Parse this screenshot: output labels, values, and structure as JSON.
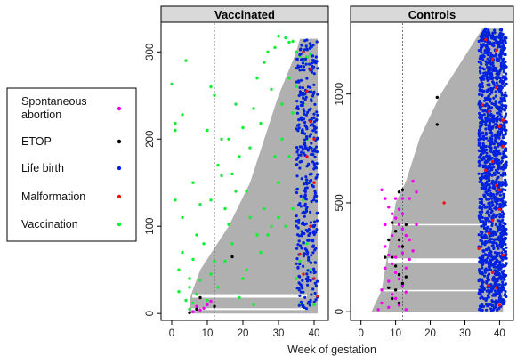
{
  "colors": {
    "spontaneous_abortion": "#ee00ee",
    "etop": "#000000",
    "life_birth": "#0022dd",
    "malformation": "#ee1111",
    "vaccination": "#11ee33",
    "follow_up": "#b0b0b0"
  },
  "legend": {
    "items": [
      {
        "label_lines": [
          "Spontaneous",
          "abortion"
        ],
        "color_key": "spontaneous_abortion"
      },
      {
        "label_lines": [
          "ETOP"
        ],
        "color_key": "etop"
      },
      {
        "label_lines": [
          "Life birth"
        ],
        "color_key": "life_birth"
      },
      {
        "label_lines": [
          "Malformation"
        ],
        "color_key": "malformation"
      },
      {
        "label_lines": [
          "Vaccination"
        ],
        "color_key": "vaccination"
      }
    ]
  },
  "xlabel": "Week of gestation",
  "chart_data": [
    {
      "type": "scatter",
      "title": "Vaccinated",
      "xlim": [
        -3,
        44
      ],
      "ylim": [
        -8,
        334
      ],
      "xticks": [
        0,
        10,
        20,
        30,
        40
      ],
      "yticks": [
        0,
        100,
        200,
        300
      ],
      "vline_week": 12,
      "n_pregnancies": 315,
      "follow_up_start": [
        [
          0,
          5
        ],
        [
          20,
          5.3
        ],
        [
          50,
          8
        ],
        [
          100,
          16
        ],
        [
          150,
          22
        ],
        [
          200,
          26
        ],
        [
          250,
          30
        ],
        [
          300,
          35
        ],
        [
          315,
          36
        ]
      ],
      "gaps": [
        [
          18,
          22
        ],
        [
          4,
          6
        ]
      ],
      "series": [
        {
          "key": "vaccination",
          "points": [
            [
              0,
              263
            ],
            [
              1,
              218
            ],
            [
              1,
              210
            ],
            [
              3,
              228
            ],
            [
              4,
              290
            ],
            [
              6,
              150
            ],
            [
              5,
              40
            ],
            [
              3,
              70
            ],
            [
              1,
              130
            ],
            [
              3,
              110
            ],
            [
              2,
              25
            ],
            [
              5,
              30
            ],
            [
              2,
              50
            ],
            [
              4,
              15
            ],
            [
              6,
              62
            ],
            [
              7,
              90
            ],
            [
              8,
              125
            ],
            [
              10,
              210
            ],
            [
              11,
              260
            ],
            [
              11,
              130
            ],
            [
              12,
              250
            ],
            [
              13,
              170
            ],
            [
              14,
              158
            ],
            [
              15,
              120
            ],
            [
              16,
              200
            ],
            [
              17,
              160
            ],
            [
              18,
              140
            ],
            [
              19,
              180
            ],
            [
              20,
              213
            ],
            [
              21,
              140
            ],
            [
              22,
              190
            ],
            [
              23,
              235
            ],
            [
              24,
              270
            ],
            [
              25,
              218
            ],
            [
              26,
              288
            ],
            [
              27,
              300
            ],
            [
              28,
              257
            ],
            [
              29,
              305
            ],
            [
              30,
              318
            ],
            [
              32,
              316
            ],
            [
              33,
              311
            ],
            [
              34,
              312
            ],
            [
              35,
              300
            ],
            [
              36,
              295
            ],
            [
              37,
              290
            ],
            [
              38,
              294
            ],
            [
              39,
              297
            ],
            [
              28,
              100
            ],
            [
              25,
              70
            ],
            [
              22,
              110
            ],
            [
              20,
              40
            ],
            [
              26,
              120
            ],
            [
              30,
              150
            ],
            [
              32,
              100
            ],
            [
              31,
              200
            ],
            [
              35,
              40
            ],
            [
              34,
              120
            ],
            [
              36,
              60
            ],
            [
              37,
              240
            ],
            [
              38,
              200
            ],
            [
              39,
              150
            ],
            [
              36,
              10
            ],
            [
              30,
              110
            ],
            [
              27,
              90
            ],
            [
              33,
              270
            ],
            [
              29,
              180
            ],
            [
              34,
              230
            ],
            [
              21,
              50
            ],
            [
              17,
              80
            ],
            [
              15,
              60
            ],
            [
              13,
              30
            ],
            [
              19,
              18
            ],
            [
              23,
              10
            ],
            [
              18,
              240
            ],
            [
              14,
              200
            ],
            [
              24,
              90
            ],
            [
              12,
              60
            ],
            [
              11,
              45
            ],
            [
              9,
              80
            ],
            [
              8,
              38
            ],
            [
              7,
              22
            ],
            [
              6,
              12
            ],
            [
              5,
              5
            ],
            [
              10,
              15
            ],
            [
              16,
              102
            ],
            [
              31,
              240
            ],
            [
              35,
              260
            ],
            [
              33,
              180
            ],
            [
              37,
              130
            ],
            [
              38,
              80
            ],
            [
              39,
              50
            ],
            [
              40,
              10
            ]
          ]
        },
        {
          "key": "etop",
          "points": [
            [
              5,
              1
            ],
            [
              8,
              18
            ],
            [
              12,
              8
            ],
            [
              17,
              65
            ],
            [
              7,
              5
            ]
          ]
        },
        {
          "key": "spontaneous_abortion",
          "points": [
            [
              6,
              2
            ],
            [
              8,
              4
            ],
            [
              9,
              6
            ],
            [
              10,
              10
            ],
            [
              11,
              14
            ],
            [
              7,
              8
            ]
          ]
        },
        {
          "key": "malformation",
          "points": [
            [
              36,
              68
            ],
            [
              37,
              45
            ],
            [
              38,
              180
            ],
            [
              39,
              220
            ],
            [
              40,
              150
            ],
            [
              40,
              40
            ],
            [
              39,
              100
            ],
            [
              38,
              255
            ],
            [
              41,
              20
            ],
            [
              37,
              300
            ],
            [
              40,
              200
            ],
            [
              39,
              280
            ]
          ]
        },
        {
          "key": "life_birth",
          "x_range": [
            35,
            41
          ],
          "count": 380,
          "y_min": 5
        }
      ]
    },
    {
      "type": "scatter",
      "title": "Controls",
      "xlim": [
        -3,
        44
      ],
      "ylim": [
        -40,
        1330
      ],
      "xticks": [
        0,
        10,
        20,
        30,
        40
      ],
      "yticks": [
        0,
        500,
        1000
      ],
      "vline_week": 12,
      "n_pregnancies": 1300,
      "follow_up_start": [
        [
          0,
          3
        ],
        [
          100,
          6
        ],
        [
          300,
          8
        ],
        [
          500,
          10
        ],
        [
          600,
          13
        ],
        [
          700,
          15
        ],
        [
          800,
          17
        ],
        [
          900,
          20
        ],
        [
          1000,
          23
        ],
        [
          1100,
          27
        ],
        [
          1200,
          31
        ],
        [
          1250,
          33
        ],
        [
          1300,
          35
        ]
      ],
      "gaps": [
        [
          400,
          403
        ],
        [
          225,
          245
        ],
        [
          95,
          100
        ]
      ],
      "series": [
        {
          "key": "spontaneous_abortion",
          "points": [
            [
              6,
              560
            ],
            [
              7,
              520
            ],
            [
              8,
              480
            ],
            [
              9,
              450
            ],
            [
              10,
              430
            ],
            [
              11,
              400
            ],
            [
              12,
              380
            ],
            [
              13,
              350
            ],
            [
              14,
              520
            ],
            [
              15,
              600
            ],
            [
              7,
              300
            ],
            [
              8,
              260
            ],
            [
              9,
              220
            ],
            [
              10,
              180
            ],
            [
              11,
              150
            ],
            [
              12,
              120
            ],
            [
              13,
              90
            ],
            [
              6,
              40
            ],
            [
              8,
              20
            ],
            [
              10,
              60
            ],
            [
              11,
              300
            ],
            [
              12,
              270
            ],
            [
              14,
              240
            ],
            [
              9,
              350
            ],
            [
              7,
              200
            ],
            [
              6,
              100
            ],
            [
              10,
              250
            ],
            [
              13,
              200
            ],
            [
              16,
              400
            ],
            [
              12,
              450
            ],
            [
              8,
              140
            ],
            [
              9,
              80
            ],
            [
              11,
              30
            ],
            [
              5,
              10
            ],
            [
              14,
              330
            ],
            [
              15,
              280
            ],
            [
              7,
              400
            ],
            [
              12,
              520
            ],
            [
              10,
              520
            ],
            [
              13,
              10
            ],
            [
              11,
              470
            ],
            [
              16,
              550
            ]
          ]
        },
        {
          "key": "etop",
          "points": [
            [
              9,
              410
            ],
            [
              10,
              370
            ],
            [
              11,
              330
            ],
            [
              8,
              330
            ],
            [
              12,
              300
            ],
            [
              9,
              250
            ],
            [
              10,
              210
            ],
            [
              11,
              170
            ],
            [
              12,
              130
            ],
            [
              8,
              110
            ],
            [
              9,
              60
            ],
            [
              13,
              160
            ],
            [
              11,
              40
            ],
            [
              10,
              100
            ],
            [
              12,
              560
            ],
            [
              13,
              400
            ],
            [
              22,
              985
            ],
            [
              22,
              860
            ],
            [
              7,
              250
            ],
            [
              11,
              550
            ]
          ]
        },
        {
          "key": "malformation",
          "points": [
            [
              36,
              1250
            ],
            [
              38,
              1160
            ],
            [
              39,
              1030
            ],
            [
              37,
              920
            ],
            [
              40,
              850
            ],
            [
              41,
              760
            ],
            [
              38,
              690
            ],
            [
              39,
              580
            ],
            [
              40,
              470
            ],
            [
              37,
              360
            ],
            [
              41,
              260
            ],
            [
              38,
              180
            ],
            [
              39,
              110
            ],
            [
              40,
              30
            ],
            [
              35,
              950
            ],
            [
              36,
              650
            ],
            [
              34,
              290
            ],
            [
              39,
              1200
            ],
            [
              40,
              560
            ],
            [
              37,
              120
            ],
            [
              41,
              880
            ],
            [
              38,
              420
            ],
            [
              24,
              500
            ]
          ]
        },
        {
          "key": "life_birth",
          "x_range": [
            34,
            42
          ],
          "count": 1400,
          "y_min": 5
        }
      ]
    }
  ]
}
